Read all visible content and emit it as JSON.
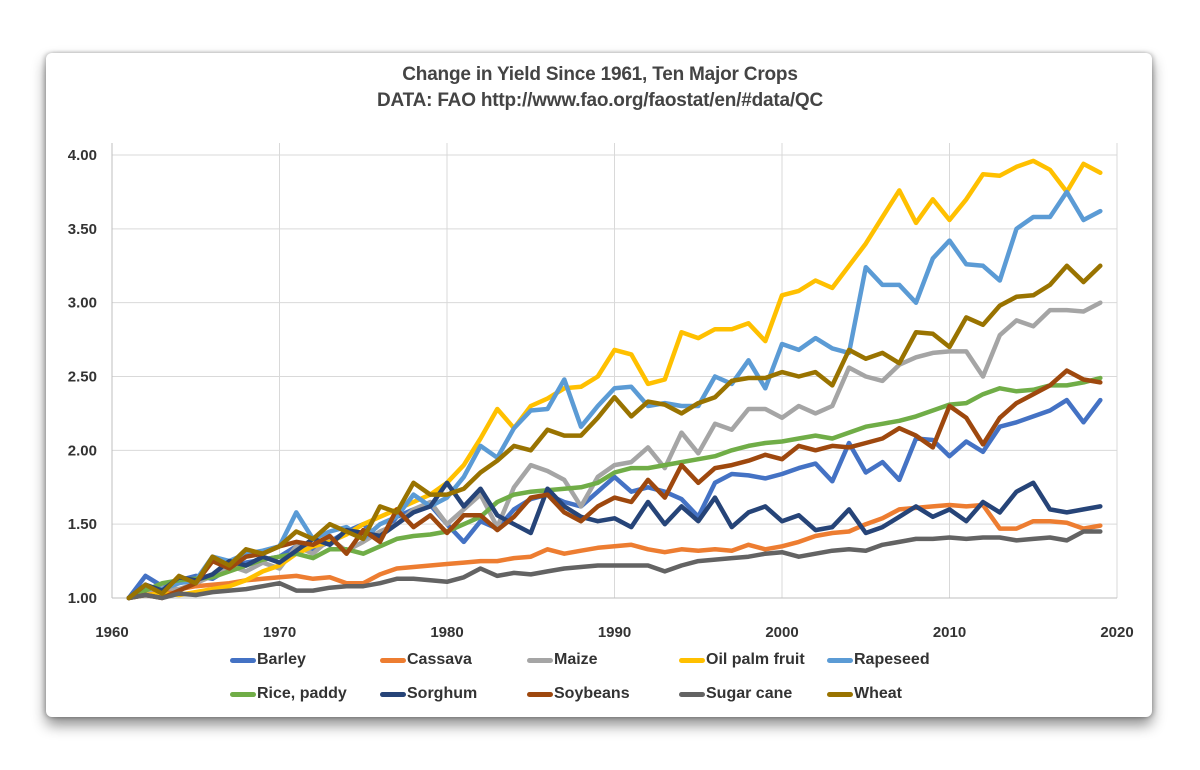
{
  "chart_data": {
    "type": "line",
    "title": "Change in Yield Since 1961, Ten Major Crops",
    "subtitle": "DATA: FAO http://www.fao.org/faostat/en/#data/QC",
    "xlabel": "",
    "ylabel": "",
    "xlim": [
      1960,
      2020
    ],
    "ylim": [
      1.0,
      4.0
    ],
    "x_ticks": [
      "1960",
      "1970",
      "1980",
      "1990",
      "2000",
      "2010",
      "2020"
    ],
    "y_ticks": [
      "1.00",
      "1.50",
      "2.00",
      "2.50",
      "3.00",
      "3.50",
      "4.00"
    ],
    "grid": true,
    "legend_position": "bottom",
    "x_start": 1961,
    "series": [
      {
        "name": "Barley",
        "color": "#4472C4",
        "values": [
          1.0,
          1.15,
          1.08,
          1.12,
          1.15,
          1.13,
          1.2,
          1.24,
          1.26,
          1.28,
          1.35,
          1.33,
          1.38,
          1.45,
          1.5,
          1.4,
          1.55,
          1.6,
          1.63,
          1.5,
          1.38,
          1.52,
          1.47,
          1.6,
          1.67,
          1.7,
          1.65,
          1.62,
          1.72,
          1.82,
          1.72,
          1.75,
          1.72,
          1.67,
          1.55,
          1.78,
          1.84,
          1.83,
          1.81,
          1.84,
          1.88,
          1.91,
          1.79,
          2.05,
          1.85,
          1.92,
          1.8,
          2.08,
          2.07,
          1.96,
          2.06,
          1.99,
          2.16,
          2.19,
          2.23,
          2.27,
          2.34,
          2.19,
          2.34
        ]
      },
      {
        "name": "Cassava",
        "color": "#ED7D31",
        "values": [
          1.0,
          1.03,
          1.04,
          1.06,
          1.08,
          1.09,
          1.1,
          1.12,
          1.13,
          1.14,
          1.15,
          1.13,
          1.14,
          1.1,
          1.1,
          1.16,
          1.2,
          1.21,
          1.22,
          1.23,
          1.24,
          1.25,
          1.25,
          1.27,
          1.28,
          1.33,
          1.3,
          1.32,
          1.34,
          1.35,
          1.36,
          1.33,
          1.31,
          1.33,
          1.32,
          1.33,
          1.32,
          1.36,
          1.33,
          1.35,
          1.38,
          1.42,
          1.44,
          1.45,
          1.5,
          1.54,
          1.6,
          1.61,
          1.62,
          1.63,
          1.62,
          1.63,
          1.47,
          1.47,
          1.52,
          1.52,
          1.51,
          1.47,
          1.49
        ]
      },
      {
        "name": "Maize",
        "color": "#A5A5A5",
        "values": [
          1.0,
          1.05,
          1.07,
          1.06,
          1.1,
          1.15,
          1.22,
          1.18,
          1.24,
          1.2,
          1.35,
          1.3,
          1.4,
          1.32,
          1.38,
          1.45,
          1.5,
          1.6,
          1.65,
          1.5,
          1.6,
          1.7,
          1.48,
          1.75,
          1.9,
          1.86,
          1.8,
          1.62,
          1.82,
          1.9,
          1.92,
          2.02,
          1.88,
          2.12,
          1.98,
          2.18,
          2.14,
          2.28,
          2.28,
          2.22,
          2.3,
          2.25,
          2.3,
          2.56,
          2.5,
          2.47,
          2.58,
          2.63,
          2.66,
          2.67,
          2.67,
          2.5,
          2.78,
          2.88,
          2.84,
          2.95,
          2.95,
          2.94,
          3.0
        ]
      },
      {
        "name": "Oil palm fruit",
        "color": "#FFC000",
        "values": [
          1.0,
          1.02,
          1.03,
          1.02,
          1.04,
          1.06,
          1.08,
          1.12,
          1.18,
          1.22,
          1.3,
          1.35,
          1.38,
          1.43,
          1.5,
          1.55,
          1.6,
          1.65,
          1.7,
          1.78,
          1.9,
          2.08,
          2.28,
          2.15,
          2.3,
          2.35,
          2.42,
          2.43,
          2.5,
          2.68,
          2.65,
          2.45,
          2.48,
          2.8,
          2.76,
          2.82,
          2.82,
          2.86,
          2.74,
          3.05,
          3.08,
          3.15,
          3.1,
          3.25,
          3.4,
          3.58,
          3.76,
          3.54,
          3.7,
          3.56,
          3.7,
          3.87,
          3.86,
          3.92,
          3.96,
          3.9,
          3.75,
          3.94,
          3.88
        ]
      },
      {
        "name": "Rapeseed",
        "color": "#5B9BD5",
        "values": [
          1.0,
          1.08,
          1.06,
          1.1,
          1.12,
          1.28,
          1.25,
          1.3,
          1.32,
          1.35,
          1.58,
          1.4,
          1.45,
          1.48,
          1.4,
          1.5,
          1.55,
          1.7,
          1.62,
          1.68,
          1.82,
          2.03,
          1.95,
          2.15,
          2.27,
          2.28,
          2.48,
          2.16,
          2.3,
          2.42,
          2.43,
          2.3,
          2.32,
          2.3,
          2.3,
          2.5,
          2.45,
          2.61,
          2.42,
          2.72,
          2.68,
          2.76,
          2.69,
          2.66,
          3.24,
          3.12,
          3.12,
          3.0,
          3.3,
          3.42,
          3.26,
          3.25,
          3.15,
          3.5,
          3.58,
          3.58,
          3.75,
          3.56,
          3.62
        ]
      },
      {
        "name": "Rice, paddy",
        "color": "#70AD47",
        "values": [
          1.0,
          1.05,
          1.1,
          1.12,
          1.13,
          1.14,
          1.18,
          1.22,
          1.26,
          1.28,
          1.3,
          1.27,
          1.33,
          1.33,
          1.3,
          1.35,
          1.4,
          1.42,
          1.43,
          1.45,
          1.5,
          1.55,
          1.65,
          1.7,
          1.72,
          1.73,
          1.74,
          1.75,
          1.78,
          1.85,
          1.88,
          1.88,
          1.9,
          1.92,
          1.94,
          1.96,
          2.0,
          2.03,
          2.05,
          2.06,
          2.08,
          2.1,
          2.08,
          2.12,
          2.16,
          2.18,
          2.2,
          2.23,
          2.27,
          2.31,
          2.32,
          2.38,
          2.42,
          2.4,
          2.41,
          2.44,
          2.44,
          2.46,
          2.49
        ]
      },
      {
        "name": "Sorghum",
        "color": "#264478",
        "values": [
          1.0,
          1.09,
          1.05,
          1.14,
          1.12,
          1.16,
          1.25,
          1.22,
          1.28,
          1.24,
          1.32,
          1.4,
          1.36,
          1.46,
          1.44,
          1.42,
          1.5,
          1.58,
          1.62,
          1.78,
          1.62,
          1.74,
          1.56,
          1.5,
          1.44,
          1.74,
          1.62,
          1.55,
          1.52,
          1.54,
          1.48,
          1.65,
          1.5,
          1.62,
          1.52,
          1.68,
          1.48,
          1.58,
          1.62,
          1.52,
          1.56,
          1.46,
          1.48,
          1.6,
          1.44,
          1.48,
          1.55,
          1.62,
          1.55,
          1.6,
          1.52,
          1.65,
          1.58,
          1.72,
          1.78,
          1.6,
          1.58,
          1.6,
          1.62
        ]
      },
      {
        "name": "Soybeans",
        "color": "#9E480E",
        "values": [
          1.0,
          1.02,
          1.0,
          1.05,
          1.1,
          1.25,
          1.2,
          1.28,
          1.3,
          1.35,
          1.38,
          1.36,
          1.42,
          1.3,
          1.46,
          1.38,
          1.6,
          1.48,
          1.56,
          1.44,
          1.56,
          1.56,
          1.46,
          1.55,
          1.68,
          1.7,
          1.58,
          1.52,
          1.62,
          1.68,
          1.65,
          1.8,
          1.68,
          1.9,
          1.78,
          1.88,
          1.9,
          1.93,
          1.97,
          1.94,
          2.03,
          2.0,
          2.03,
          2.02,
          2.05,
          2.08,
          2.15,
          2.1,
          2.02,
          2.3,
          2.22,
          2.04,
          2.22,
          2.32,
          2.38,
          2.44,
          2.54,
          2.48,
          2.46
        ]
      },
      {
        "name": "Sugar cane",
        "color": "#636363",
        "values": [
          1.0,
          1.02,
          1.0,
          1.03,
          1.02,
          1.04,
          1.05,
          1.06,
          1.08,
          1.1,
          1.05,
          1.05,
          1.07,
          1.08,
          1.08,
          1.1,
          1.13,
          1.13,
          1.12,
          1.11,
          1.14,
          1.2,
          1.15,
          1.17,
          1.16,
          1.18,
          1.2,
          1.21,
          1.22,
          1.22,
          1.22,
          1.22,
          1.18,
          1.22,
          1.25,
          1.26,
          1.27,
          1.28,
          1.3,
          1.31,
          1.28,
          1.3,
          1.32,
          1.33,
          1.32,
          1.36,
          1.38,
          1.4,
          1.4,
          1.41,
          1.4,
          1.41,
          1.41,
          1.39,
          1.4,
          1.41,
          1.39,
          1.45,
          1.45
        ]
      },
      {
        "name": "Wheat",
        "color": "#997300",
        "values": [
          1.0,
          1.09,
          1.03,
          1.15,
          1.1,
          1.28,
          1.22,
          1.33,
          1.3,
          1.35,
          1.45,
          1.4,
          1.5,
          1.45,
          1.4,
          1.62,
          1.58,
          1.78,
          1.7,
          1.7,
          1.74,
          1.85,
          1.93,
          2.03,
          2.0,
          2.14,
          2.1,
          2.1,
          2.22,
          2.36,
          2.23,
          2.33,
          2.31,
          2.25,
          2.32,
          2.36,
          2.47,
          2.49,
          2.49,
          2.53,
          2.5,
          2.53,
          2.44,
          2.68,
          2.62,
          2.66,
          2.59,
          2.8,
          2.79,
          2.7,
          2.9,
          2.85,
          2.98,
          3.04,
          3.05,
          3.12,
          3.25,
          3.14,
          3.25
        ]
      }
    ]
  }
}
